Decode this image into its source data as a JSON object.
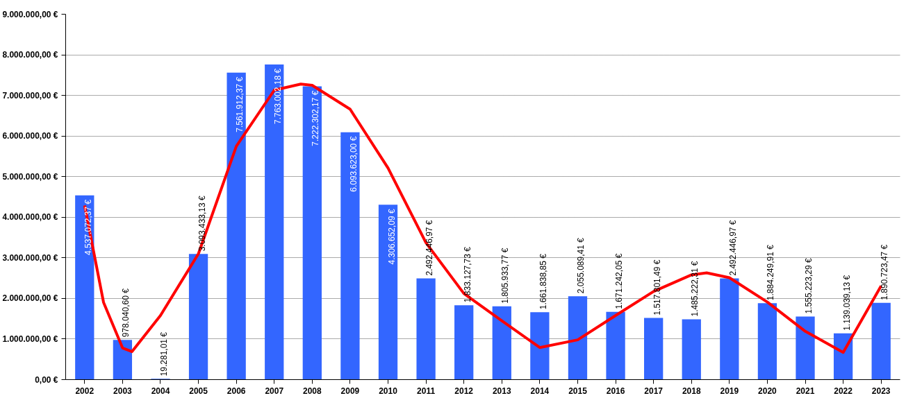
{
  "chart_data": {
    "type": "bar",
    "x": [
      2002,
      2003,
      2004,
      2005,
      2006,
      2007,
      2008,
      2009,
      2010,
      2011,
      2012,
      2013,
      2014,
      2015,
      2016,
      2017,
      2018,
      2019,
      2020,
      2021,
      2022,
      2023
    ],
    "xlim": [
      2001.5,
      2023.5
    ],
    "xticks": [
      2002,
      2003,
      2004,
      2005,
      2006,
      2007,
      2008,
      2009,
      2010,
      2011,
      2012,
      2013,
      2014,
      2015,
      2016,
      2017,
      2018,
      2019,
      2020,
      2021,
      2022,
      2023
    ],
    "ylim": [
      0,
      9000000
    ],
    "yticks": [
      {
        "value": 0,
        "label": "0,00 €"
      },
      {
        "value": 1000000,
        "label": "1.000.000,00 €"
      },
      {
        "value": 2000000,
        "label": "2.000.000,00 €"
      },
      {
        "value": 3000000,
        "label": "3.000.000,00 €"
      },
      {
        "value": 4000000,
        "label": "4.000.000,00 €"
      },
      {
        "value": 5000000,
        "label": "5.000.000,00 €"
      },
      {
        "value": 6000000,
        "label": "6.000.000,00 €"
      },
      {
        "value": 7000000,
        "label": "7.000.000,00 €"
      },
      {
        "value": 8000000,
        "label": "8.000.000,00 €"
      },
      {
        "value": 9000000,
        "label": "9.000.000,00 €"
      }
    ],
    "grid": "y",
    "series": [
      {
        "color": "#3366ff",
        "values": [
          4537072.37,
          978040.6,
          19281.01,
          3093433.13,
          7561912.37,
          7763002.18,
          7222302.17,
          6093623.0,
          4306652.09,
          2492446.97,
          1833127.73,
          1805933.77,
          1661838.85,
          2055089.41,
          1671242.05,
          1517801.49,
          1485222.31,
          2492446.97,
          1884249.91,
          1555223.29,
          1139039.13,
          1890723.47
        ],
        "value_labels": [
          "4.537.072,37 €",
          "978.040,60 €",
          "19.281,01 €",
          "3.093.433,13 €",
          "7.561.912,37 €",
          "7.763.002,18 €",
          "7.222.302,17 €",
          "6.093.623,00 €",
          "4.306.652,09 €",
          "2.492.446,97 €",
          "1.833.127,73 €",
          "1.805.933,77 €",
          "1.661.838,85 €",
          "2.055.089,41 €",
          "1.671.242,05 €",
          "1.517.801,49 €",
          "1.485.222,31 €",
          "2.492.446,97 €",
          "1.884.249,91 €",
          "1.555.223,29 €",
          "1.139.039,13 €",
          "1.890.723,47 €"
        ]
      },
      {
        "type": "line",
        "color": "#ff0000",
        "x": [
          2002,
          2002.5,
          2003,
          2003.25,
          2004,
          2005,
          2006,
          2007,
          2007.7,
          2008,
          2009,
          2010,
          2011,
          2012,
          2013,
          2014,
          2015,
          2016,
          2017,
          2018,
          2018.4,
          2019,
          2020,
          2021,
          2022,
          2023
        ],
        "values": [
          4290000,
          1900000,
          780000,
          690000,
          1580000,
          3100000,
          5750000,
          7130000,
          7280000,
          7250000,
          6660000,
          5210000,
          3370000,
          2120000,
          1450000,
          790000,
          980000,
          1580000,
          2170000,
          2580000,
          2630000,
          2510000,
          1910000,
          1190000,
          670000,
          2310000
        ]
      }
    ]
  }
}
